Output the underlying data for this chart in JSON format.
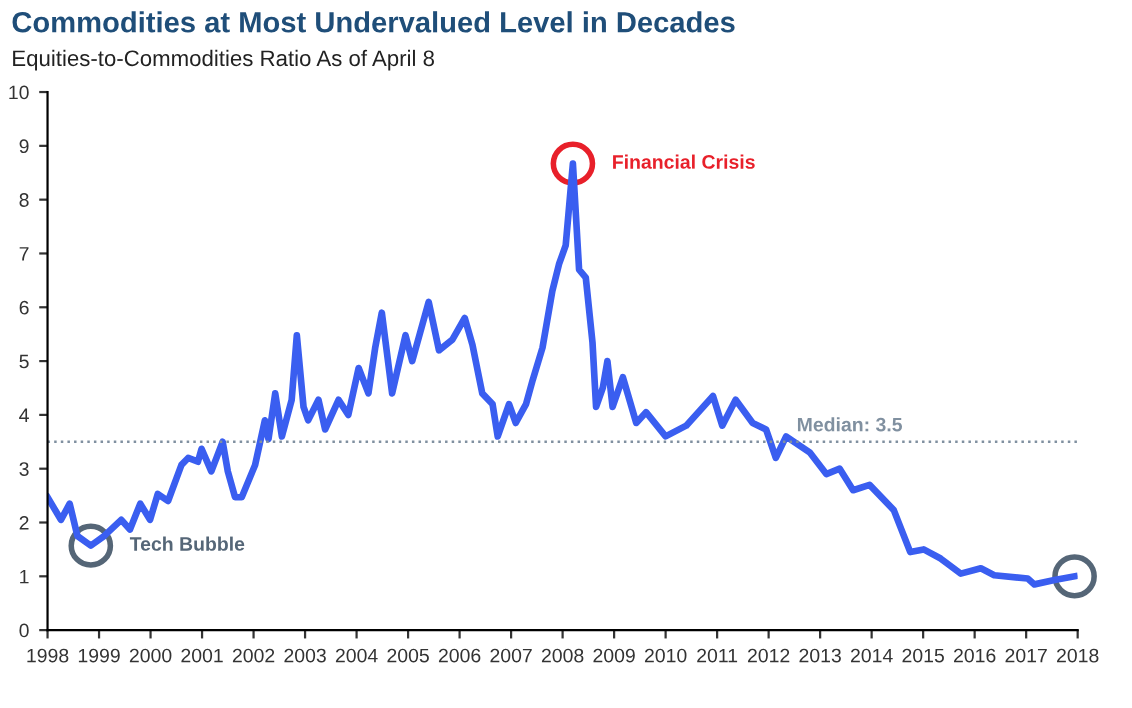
{
  "chart_data": {
    "type": "line",
    "title": "Commodities at Most Undervalued Level in Decades",
    "subtitle": "Equities-to-Commodities Ratio As of April 8",
    "x": [
      1998.0,
      1998.26,
      1998.43,
      1998.58,
      1998.84,
      1999.1,
      1999.43,
      1999.6,
      1999.8,
      1999.99,
      2000.14,
      2000.34,
      2000.6,
      2000.73,
      2000.92,
      2000.99,
      2001.18,
      2001.4,
      2001.5,
      2001.64,
      2001.77,
      2002.03,
      2002.22,
      2002.29,
      2002.42,
      2002.55,
      2002.74,
      2002.84,
      2002.97,
      2003.06,
      2003.26,
      2003.39,
      2003.65,
      2003.84,
      2004.04,
      2004.23,
      2004.36,
      2004.49,
      2004.69,
      2004.95,
      2005.08,
      2005.4,
      2005.6,
      2005.86,
      2006.1,
      2006.25,
      2006.44,
      2006.64,
      2006.74,
      2006.96,
      2007.09,
      2007.29,
      2007.42,
      2007.61,
      2007.8,
      2007.93,
      2008.06,
      2008.2,
      2008.32,
      2008.45,
      2008.58,
      2008.65,
      2008.78,
      2008.87,
      2008.97,
      2009.17,
      2009.43,
      2009.62,
      2010.0,
      2010.4,
      2010.92,
      2011.1,
      2011.36,
      2011.69,
      2011.95,
      2012.14,
      2012.34,
      2012.8,
      2013.12,
      2013.38,
      2013.64,
      2013.96,
      2014.43,
      2014.75,
      2015.01,
      2015.34,
      2015.73,
      2016.12,
      2016.38,
      2017.03,
      2017.16,
      2017.55,
      2017.94
    ],
    "series": [
      {
        "color": "#3a5ef0",
        "values": [
          2.47,
          2.05,
          2.35,
          1.75,
          1.57,
          1.75,
          2.05,
          1.87,
          2.35,
          2.05,
          2.53,
          2.4,
          3.07,
          3.2,
          3.13,
          3.37,
          2.95,
          3.5,
          2.95,
          2.47,
          2.47,
          3.07,
          3.9,
          3.55,
          4.4,
          3.6,
          4.28,
          5.48,
          4.15,
          3.9,
          4.28,
          3.73,
          4.28,
          4.0,
          4.87,
          4.4,
          5.24,
          5.9,
          4.4,
          5.48,
          5.0,
          6.1,
          5.2,
          5.4,
          5.8,
          5.3,
          4.4,
          4.2,
          3.6,
          4.2,
          3.85,
          4.2,
          4.65,
          5.25,
          6.3,
          6.8,
          7.15,
          8.67,
          6.7,
          6.55,
          5.35,
          4.15,
          4.5,
          5.0,
          4.15,
          4.7,
          3.85,
          4.05,
          3.6,
          3.8,
          4.35,
          3.8,
          4.28,
          3.85,
          3.73,
          3.2,
          3.6,
          3.3,
          2.9,
          3.0,
          2.6,
          2.7,
          2.23,
          1.45,
          1.5,
          1.33,
          1.05,
          1.15,
          1.02,
          0.96,
          0.85,
          0.93,
          1.0
        ]
      }
    ],
    "xlim": [
      1998,
      2018
    ],
    "xticks": [
      1998,
      1999,
      2000,
      2001,
      2002,
      2003,
      2004,
      2005,
      2006,
      2007,
      2008,
      2009,
      2010,
      2011,
      2012,
      2013,
      2014,
      2015,
      2016,
      2017,
      2018
    ],
    "ylim": [
      0,
      10
    ],
    "yticks": [
      0,
      1,
      2,
      3,
      4,
      5,
      6,
      7,
      8,
      9,
      10
    ],
    "ref_lines": [
      {
        "axis": "y",
        "value": 3.5,
        "label": "Median: 3.5",
        "color": "#8090a0",
        "line_style": "dotted"
      }
    ],
    "annotations": [
      {
        "text": "Financial Crisis",
        "x": 2008.2,
        "y": 8.67
      },
      {
        "text": "Tech Bubble",
        "x": 1998.84,
        "y": 1.57
      }
    ],
    "grid": false,
    "marker": "none",
    "line_style": "solid"
  }
}
